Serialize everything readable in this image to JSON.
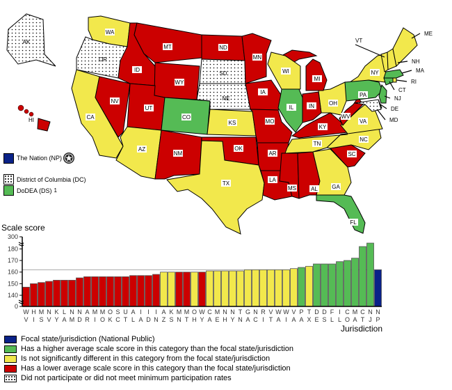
{
  "colors": {
    "focal": "#0A2288",
    "higher": "#55BB55",
    "same": "#F2E84C",
    "lower": "#CC0000",
    "none": "dotted"
  },
  "map": {
    "states": [
      {
        "code": "WA",
        "status": "same"
      },
      {
        "code": "OR",
        "status": "none"
      },
      {
        "code": "CA",
        "status": "same"
      },
      {
        "code": "NV",
        "status": "lower"
      },
      {
        "code": "ID",
        "status": "lower"
      },
      {
        "code": "MT",
        "status": "lower"
      },
      {
        "code": "WY",
        "status": "lower"
      },
      {
        "code": "UT",
        "status": "lower"
      },
      {
        "code": "CO",
        "status": "higher"
      },
      {
        "code": "AZ",
        "status": "same"
      },
      {
        "code": "NM",
        "status": "lower"
      },
      {
        "code": "ND",
        "status": "lower"
      },
      {
        "code": "SD",
        "status": "none"
      },
      {
        "code": "NE",
        "status": "none"
      },
      {
        "code": "KS",
        "status": "same"
      },
      {
        "code": "OK",
        "status": "lower"
      },
      {
        "code": "TX",
        "status": "same"
      },
      {
        "code": "MN",
        "status": "lower"
      },
      {
        "code": "IA",
        "status": "lower"
      },
      {
        "code": "MO",
        "status": "lower"
      },
      {
        "code": "AR",
        "status": "lower"
      },
      {
        "code": "LA",
        "status": "lower"
      },
      {
        "code": "MS",
        "status": "lower"
      },
      {
        "code": "AL",
        "status": "lower"
      },
      {
        "code": "GA",
        "status": "same"
      },
      {
        "code": "FL",
        "status": "higher"
      },
      {
        "code": "SC",
        "status": "lower"
      },
      {
        "code": "NC",
        "status": "same"
      },
      {
        "code": "TN",
        "status": "same"
      },
      {
        "code": "KY",
        "status": "lower"
      },
      {
        "code": "VA",
        "status": "same"
      },
      {
        "code": "WV",
        "status": "lower"
      },
      {
        "code": "OH",
        "status": "same"
      },
      {
        "code": "IN",
        "status": "lower"
      },
      {
        "code": "IL",
        "status": "higher"
      },
      {
        "code": "MI",
        "status": "lower"
      },
      {
        "code": "WI",
        "status": "same"
      },
      {
        "code": "NY",
        "status": "same"
      },
      {
        "code": "PA",
        "status": "higher"
      },
      {
        "code": "NJ",
        "status": "higher"
      },
      {
        "code": "DE",
        "status": "higher"
      },
      {
        "code": "MD",
        "status": "none"
      },
      {
        "code": "CT",
        "status": "higher"
      },
      {
        "code": "RI",
        "status": "same"
      },
      {
        "code": "MA",
        "status": "higher"
      },
      {
        "code": "VT",
        "status": "same"
      },
      {
        "code": "NH",
        "status": "same"
      },
      {
        "code": "ME",
        "status": "same"
      },
      {
        "code": "AK",
        "status": "none"
      },
      {
        "code": "HI",
        "status": "lower"
      }
    ],
    "legend": {
      "nation": "The Nation (NP)",
      "nation_icon": "star-in-circle-icon",
      "dc": "District of Columbia (DC)",
      "dods": "DoDEA (DS)",
      "dods_note": "1"
    }
  },
  "chart_data": {
    "type": "bar",
    "ylabel": "Scale score",
    "xlabel": "Jurisdiction",
    "yticks": [
      "300",
      "180",
      "170",
      "160",
      "150",
      "140",
      "0"
    ],
    "axis_breaks": true,
    "reference_line": 162,
    "categories": [
      "WV",
      "HI",
      "MS",
      "NV",
      "KY",
      "LA",
      "NM",
      "ND",
      "AR",
      "MI",
      "MO",
      "OK",
      "SC",
      "UT",
      "AL",
      "IA",
      "ID",
      "IN",
      "AZ",
      "KS",
      "MN",
      "MT",
      "OH",
      "WY",
      "CA",
      "ME",
      "NH",
      "NY",
      "TN",
      "GA",
      "NC",
      "RI",
      "VT",
      "WA",
      "WI",
      "VA",
      "PA",
      "TX",
      "DE",
      "DS",
      "FL",
      "IL",
      "CO",
      "MA",
      "CT",
      "NJ",
      "NP"
    ],
    "values": [
      147,
      150,
      151,
      152,
      153,
      153,
      153,
      155,
      156,
      156,
      156,
      156,
      156,
      156,
      157,
      157,
      157,
      158,
      160,
      160,
      160,
      160,
      160,
      160,
      161,
      161,
      161,
      161,
      161,
      162,
      162,
      162,
      162,
      162,
      162,
      163,
      164,
      165,
      167,
      167,
      167,
      169,
      170,
      172,
      182,
      185,
      162
    ],
    "status": [
      "lower",
      "lower",
      "lower",
      "lower",
      "lower",
      "lower",
      "lower",
      "lower",
      "lower",
      "lower",
      "lower",
      "lower",
      "lower",
      "lower",
      "lower",
      "lower",
      "lower",
      "lower",
      "same",
      "same",
      "lower",
      "lower",
      "same",
      "lower",
      "same",
      "same",
      "same",
      "same",
      "same",
      "same",
      "same",
      "same",
      "same",
      "same",
      "same",
      "same",
      "higher",
      "same",
      "higher",
      "higher",
      "higher",
      "higher",
      "higher",
      "higher",
      "higher",
      "higher",
      "focal"
    ]
  },
  "legend": [
    {
      "key": "focal",
      "label": "Focal state/jurisdiction (National Public)"
    },
    {
      "key": "higher",
      "label": "Has a higher average scale score in this category than the focal state/jurisdiction"
    },
    {
      "key": "same",
      "label": "Is not significantly different in this category from the focal state/jurisdiction"
    },
    {
      "key": "lower",
      "label": "Has a lower average scale score in this category than the focal state/jurisdiction"
    },
    {
      "key": "none",
      "label": "Did not participate or did not meet minimum participation rates"
    }
  ]
}
